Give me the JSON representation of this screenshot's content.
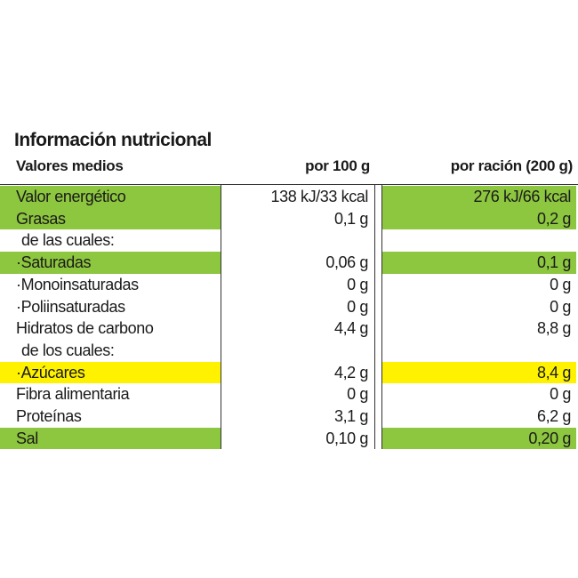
{
  "header": {
    "title": "Información nutricional",
    "columns": [
      "Valores medios",
      "por 100 g",
      "por ración (200 g)"
    ]
  },
  "table": {
    "rows": [
      {
        "label": "Valor energético",
        "per100": "138 kJ/33 kcal",
        "perServing": "276 kJ/66 kcal",
        "highlight": "#8dc63f"
      },
      {
        "label": "Grasas",
        "per100": "0,1 g",
        "perServing": "0,2 g",
        "highlight": "#8dc63f"
      },
      {
        "label": "de las cuales:",
        "per100": null,
        "perServing": null,
        "indent": true
      },
      {
        "label": "·Saturadas",
        "per100": "0,06 g",
        "perServing": "0,1 g",
        "highlight": "#8dc63f"
      },
      {
        "label": "·Monoinsaturadas",
        "per100": "0 g",
        "perServing": "0 g"
      },
      {
        "label": "·Poliinsaturadas",
        "per100": "0 g",
        "perServing": "0 g"
      },
      {
        "label": "Hidratos de carbono",
        "per100": "4,4 g",
        "perServing": "8,8 g"
      },
      {
        "label": "de los cuales:",
        "per100": null,
        "perServing": null,
        "indent": true
      },
      {
        "label": "·Azúcares",
        "per100": "4,2 g",
        "perServing": "8,4 g",
        "highlight": "#fff200"
      },
      {
        "label": "Fibra alimentaria",
        "per100": "0 g",
        "perServing": "0 g"
      },
      {
        "label": "Proteínas",
        "per100": "3,1 g",
        "perServing": "6,2 g"
      },
      {
        "label": "Sal",
        "per100": "0,10 g",
        "perServing": "0,20 g",
        "highlight": "#8dc63f"
      }
    ]
  }
}
